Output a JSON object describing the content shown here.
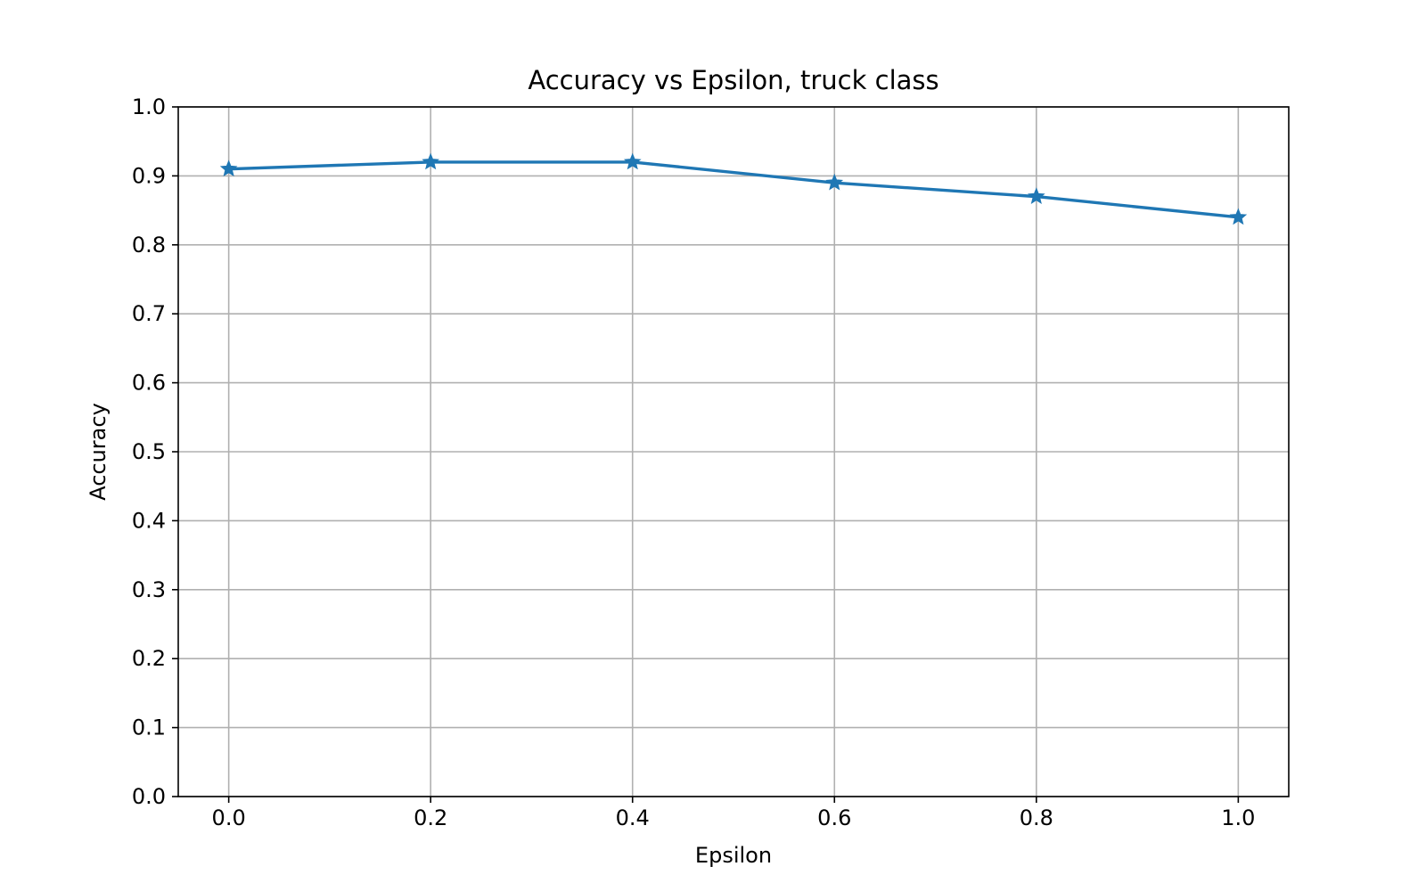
{
  "chart_data": {
    "type": "line",
    "title": "Accuracy vs Epsilon, truck class",
    "xlabel": "Epsilon",
    "ylabel": "Accuracy",
    "xlim": [
      -0.05,
      1.05
    ],
    "ylim": [
      0.0,
      1.0
    ],
    "xticks": [
      0.0,
      0.2,
      0.4,
      0.6,
      0.8,
      1.0
    ],
    "xtick_labels": [
      "0.0",
      "0.2",
      "0.4",
      "0.6",
      "0.8",
      "1.0"
    ],
    "yticks": [
      0.0,
      0.1,
      0.2,
      0.3,
      0.4,
      0.5,
      0.6,
      0.7,
      0.8,
      0.9,
      1.0
    ],
    "ytick_labels": [
      "0.0",
      "0.1",
      "0.2",
      "0.3",
      "0.4",
      "0.5",
      "0.6",
      "0.7",
      "0.8",
      "0.9",
      "1.0"
    ],
    "grid": true,
    "legend": false,
    "series": [
      {
        "x": [
          0.0,
          0.2,
          0.4,
          0.6,
          0.8,
          1.0
        ],
        "y": [
          0.91,
          0.92,
          0.92,
          0.89,
          0.87,
          0.84
        ],
        "color": "#1f77b4",
        "marker": "star-icon"
      }
    ]
  }
}
